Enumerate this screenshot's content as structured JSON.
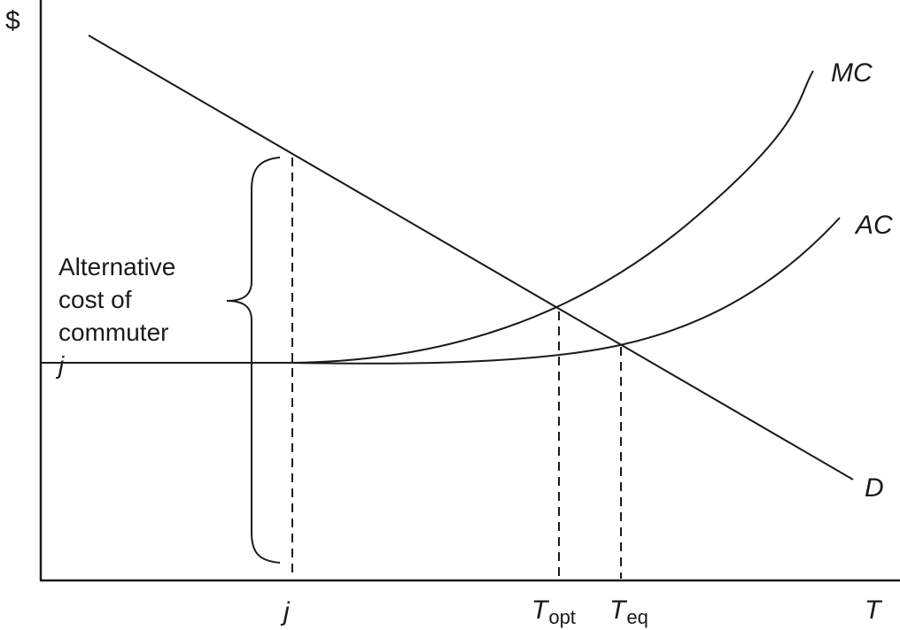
{
  "axes": {
    "y_label": "$",
    "x_label": "T"
  },
  "curves": {
    "demand_label": "D",
    "marginal_cost_label": "MC",
    "average_cost_label": "AC"
  },
  "ticks": {
    "j": "j",
    "t_opt_main": "T",
    "t_opt_sub": "opt",
    "t_eq_main": "T",
    "t_eq_sub": "eq"
  },
  "annotation": {
    "line1": "Alternative",
    "line2": "cost of",
    "line3_text": "commuter ",
    "line3_var": "j"
  }
}
